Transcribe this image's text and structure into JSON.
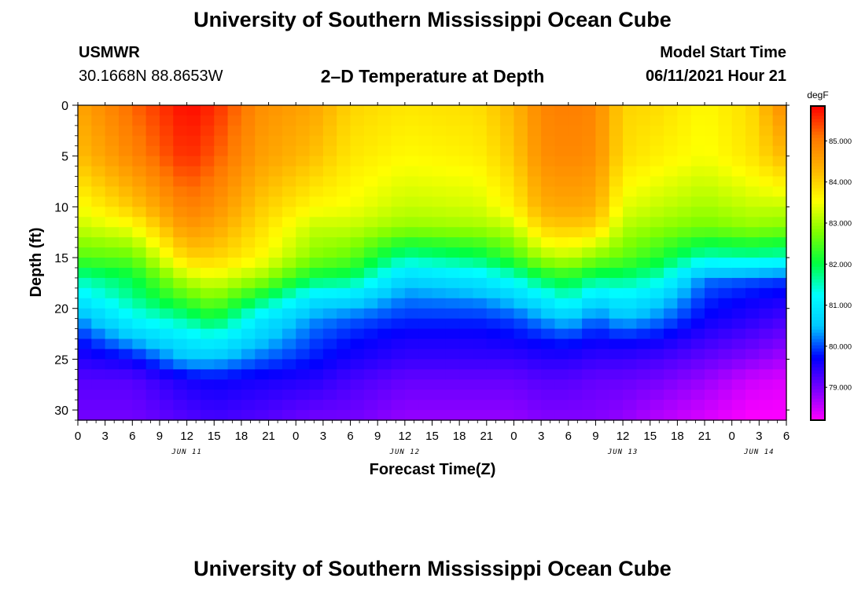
{
  "header": {
    "title": "University of Southern Mississippi Ocean Cube",
    "station_name": "USMWR",
    "station_coords": "30.1668N  88.8653W",
    "subtitle": "2–D Temperature at Depth",
    "model_label": "Model Start Time",
    "model_time": "06/11/2021 Hour 21"
  },
  "footer": {
    "title": "University of Southern Mississippi Ocean Cube"
  },
  "chart_data": {
    "type": "heatmap",
    "title": "2–D Temperature at Depth",
    "xlabel": "Forecast Time(Z)",
    "ylabel": "Depth (ft)",
    "x_unit": "hours since 2021-06-11 00Z",
    "xlim": [
      0,
      78
    ],
    "ylim": [
      0,
      31
    ],
    "y_inverted": true,
    "x_tick_values": [
      0,
      3,
      6,
      9,
      12,
      15,
      18,
      21,
      24,
      27,
      30,
      33,
      36,
      39,
      42,
      45,
      48,
      51,
      54,
      57,
      60,
      63,
      66,
      69,
      72,
      75,
      78
    ],
    "x_tick_labels": [
      "0",
      "3",
      "6",
      "9",
      "12",
      "15",
      "18",
      "21",
      "0",
      "3",
      "6",
      "9",
      "12",
      "15",
      "18",
      "21",
      "0",
      "3",
      "6",
      "9",
      "12",
      "15",
      "18",
      "21",
      "0",
      "3",
      "6"
    ],
    "date_labels": [
      {
        "x": 12,
        "label": "JUN 11"
      },
      {
        "x": 36,
        "label": "JUN 12"
      },
      {
        "x": 60,
        "label": "JUN 13"
      },
      {
        "x": 75,
        "label": "JUN 14"
      }
    ],
    "y_ticks": [
      0,
      5,
      10,
      15,
      20,
      25,
      30
    ],
    "colorbar": {
      "unit_label": "degF",
      "range": [
        78.2,
        85.85
      ],
      "tick_values": [
        79.0,
        80.0,
        81.0,
        82.0,
        83.0,
        84.0,
        85.0
      ],
      "tick_labels": [
        "79.000",
        "80.000",
        "81.000",
        "82.000",
        "83.000",
        "84.000",
        "85.000"
      ],
      "colormap": [
        "#ff00ff",
        "#7a00ff",
        "#0000ff",
        "#00c8ff",
        "#00ffff",
        "#00ff40",
        "#80ff00",
        "#ffff00",
        "#ffb400",
        "#ff7800",
        "#ff0000"
      ]
    },
    "z_description": "temperature degF sampled on grid: time every 1.5 h (0..78), depth every 1 ft (0..31)",
    "profile_times": [
      0,
      6,
      12,
      15,
      20,
      26,
      30,
      36,
      44,
      48,
      51,
      54,
      57,
      60,
      64,
      69,
      74,
      78
    ],
    "profile_depths": [
      0,
      5,
      10,
      12,
      15,
      17,
      19,
      21,
      23,
      25,
      27,
      31
    ],
    "profiles": [
      [
        84.5,
        84.2,
        83.5,
        83.2,
        82.5,
        81.6,
        81.0,
        80.3,
        79.8,
        79.5,
        79.2,
        79.0
      ],
      [
        85.2,
        84.9,
        84.1,
        83.5,
        82.6,
        82.0,
        81.7,
        81.2,
        80.5,
        79.7,
        79.2,
        79.0
      ],
      [
        85.8,
        85.6,
        85.0,
        84.7,
        84.0,
        83.2,
        82.5,
        81.7,
        81.0,
        80.5,
        79.6,
        79.2
      ],
      [
        85.6,
        85.3,
        84.8,
        84.5,
        84.0,
        83.4,
        82.8,
        82.1,
        81.2,
        80.5,
        79.7,
        79.3
      ],
      [
        84.8,
        84.6,
        84.1,
        83.9,
        83.6,
        83.0,
        82.0,
        81.0,
        80.6,
        80.1,
        79.6,
        79.2
      ],
      [
        84.5,
        84.2,
        83.6,
        83.2,
        82.8,
        82.0,
        80.9,
        80.3,
        80.0,
        79.8,
        79.5,
        79.0
      ],
      [
        84.0,
        83.8,
        83.5,
        83.2,
        82.6,
        81.9,
        80.8,
        80.1,
        79.8,
        79.6,
        79.3,
        79.0
      ],
      [
        83.8,
        83.6,
        83.2,
        82.9,
        81.6,
        80.7,
        80.2,
        79.9,
        79.6,
        79.4,
        79.1,
        78.8
      ],
      [
        83.9,
        83.7,
        83.3,
        83.0,
        81.9,
        81.0,
        80.3,
        79.9,
        79.6,
        79.4,
        79.1,
        78.8
      ],
      [
        84.3,
        84.1,
        83.7,
        83.2,
        82.4,
        81.4,
        80.6,
        80.0,
        79.7,
        79.4,
        79.1,
        78.8
      ],
      [
        84.9,
        84.8,
        84.4,
        84.0,
        83.0,
        82.0,
        81.0,
        80.3,
        79.8,
        79.5,
        79.2,
        78.9
      ],
      [
        85.0,
        84.9,
        84.5,
        84.1,
        83.2,
        82.2,
        81.5,
        80.6,
        79.9,
        79.5,
        79.2,
        78.9
      ],
      [
        84.9,
        84.8,
        84.4,
        84.0,
        82.8,
        81.8,
        80.8,
        80.1,
        79.7,
        79.4,
        79.1,
        78.9
      ],
      [
        84.0,
        83.9,
        83.4,
        83.1,
        82.6,
        81.8,
        81.1,
        80.5,
        79.8,
        79.4,
        79.1,
        78.8
      ],
      [
        83.9,
        83.7,
        83.2,
        82.9,
        82.2,
        81.5,
        80.7,
        80.2,
        79.7,
        79.3,
        79.0,
        78.6
      ],
      [
        83.6,
        83.5,
        83.0,
        82.7,
        81.5,
        80.2,
        79.9,
        79.7,
        79.4,
        79.1,
        78.8,
        78.4
      ],
      [
        83.9,
        83.8,
        83.2,
        82.9,
        81.6,
        80.1,
        79.7,
        79.5,
        79.2,
        78.9,
        78.5,
        78.2
      ],
      [
        84.9,
        84.3,
        83.2,
        82.8,
        81.5,
        80.0,
        79.6,
        79.3,
        79.0,
        78.7,
        78.4,
        78.2
      ]
    ]
  }
}
